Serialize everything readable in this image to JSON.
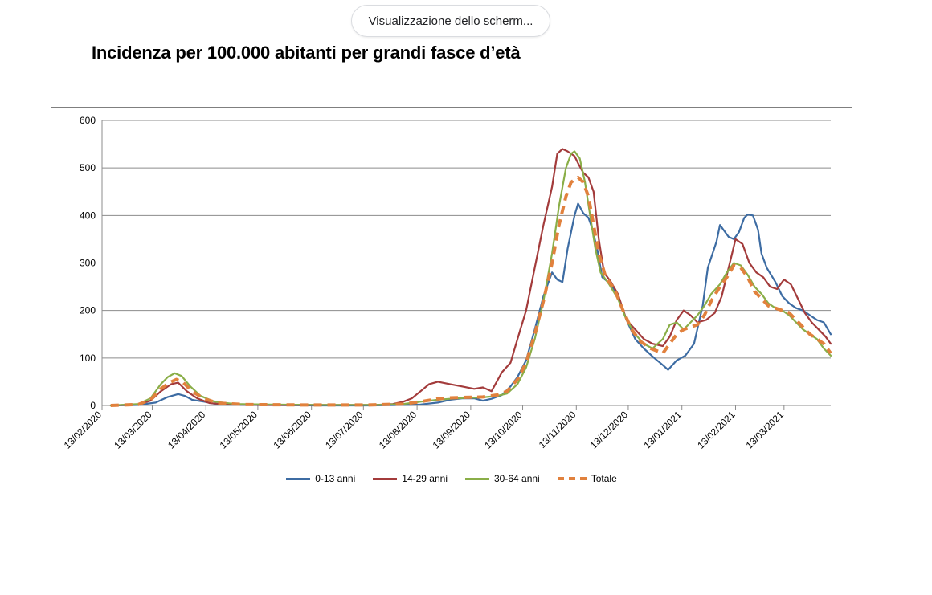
{
  "overlay": {
    "share_label": "Visualizzazione dello scherm..."
  },
  "slide": {
    "title": "Incidenza per 100.000 abitanti per grandi fasce d’età"
  },
  "chart_data": {
    "type": "line",
    "title": "",
    "xlabel": "",
    "ylabel": "",
    "ylim": [
      0,
      600
    ],
    "yticks": [
      0,
      100,
      200,
      300,
      400,
      500,
      600
    ],
    "xlim": [
      "2020-02-13",
      "2021-04-09"
    ],
    "xticks": [
      "2020-02-13",
      "2020-03-13",
      "2020-04-13",
      "2020-05-13",
      "2020-06-13",
      "2020-07-13",
      "2020-08-13",
      "2020-09-13",
      "2020-10-13",
      "2020-11-13",
      "2020-12-13",
      "2021-01-13",
      "2021-02-13",
      "2021-03-13"
    ],
    "xtick_labels": [
      "13/02/2020",
      "13/03/2020",
      "13/04/2020",
      "13/05/2020",
      "13/06/2020",
      "13/07/2020",
      "13/08/2020",
      "13/09/2020",
      "13/10/2020",
      "13/11/2020",
      "13/12/2020",
      "13/01/2021",
      "13/02/2021",
      "13/03/2021"
    ],
    "grid": {
      "horizontal": true,
      "vertical": false
    },
    "legend_position": "bottom",
    "series": [
      {
        "name": "0-13 anni",
        "color": "#3d6ca3",
        "dashed": false,
        "points": [
          [
            "2020-02-18",
            0
          ],
          [
            "2020-03-05",
            1
          ],
          [
            "2020-03-15",
            6
          ],
          [
            "2020-03-22",
            18
          ],
          [
            "2020-03-28",
            24
          ],
          [
            "2020-04-01",
            20
          ],
          [
            "2020-04-05",
            12
          ],
          [
            "2020-04-12",
            8
          ],
          [
            "2020-04-20",
            2
          ],
          [
            "2020-05-10",
            1
          ],
          [
            "2020-06-15",
            0
          ],
          [
            "2020-07-15",
            0
          ],
          [
            "2020-08-05",
            1
          ],
          [
            "2020-08-15",
            2
          ],
          [
            "2020-08-25",
            6
          ],
          [
            "2020-09-01",
            12
          ],
          [
            "2020-09-08",
            15
          ],
          [
            "2020-09-15",
            15
          ],
          [
            "2020-09-20",
            10
          ],
          [
            "2020-09-25",
            14
          ],
          [
            "2020-10-01",
            22
          ],
          [
            "2020-10-06",
            40
          ],
          [
            "2020-10-10",
            60
          ],
          [
            "2020-10-15",
            95
          ],
          [
            "2020-10-20",
            160
          ],
          [
            "2020-10-25",
            230
          ],
          [
            "2020-10-30",
            280
          ],
          [
            "2020-11-02",
            265
          ],
          [
            "2020-11-05",
            260
          ],
          [
            "2020-11-08",
            330
          ],
          [
            "2020-11-12",
            400
          ],
          [
            "2020-11-14",
            425
          ],
          [
            "2020-11-17",
            405
          ],
          [
            "2020-11-20",
            395
          ],
          [
            "2020-11-22",
            375
          ],
          [
            "2020-11-25",
            330
          ],
          [
            "2020-11-28",
            270
          ],
          [
            "2020-12-03",
            255
          ],
          [
            "2020-12-07",
            230
          ],
          [
            "2020-12-12",
            180
          ],
          [
            "2020-12-17",
            140
          ],
          [
            "2020-12-22",
            120
          ],
          [
            "2020-12-28",
            100
          ],
          [
            "2021-01-02",
            85
          ],
          [
            "2021-01-05",
            75
          ],
          [
            "2021-01-10",
            95
          ],
          [
            "2021-01-15",
            105
          ],
          [
            "2021-01-20",
            130
          ],
          [
            "2021-01-25",
            210
          ],
          [
            "2021-01-28",
            290
          ],
          [
            "2021-02-02",
            345
          ],
          [
            "2021-02-04",
            380
          ],
          [
            "2021-02-06",
            370
          ],
          [
            "2021-02-09",
            355
          ],
          [
            "2021-02-12",
            350
          ],
          [
            "2021-02-15",
            365
          ],
          [
            "2021-02-18",
            395
          ],
          [
            "2021-02-20",
            402
          ],
          [
            "2021-02-23",
            400
          ],
          [
            "2021-02-26",
            370
          ],
          [
            "2021-02-28",
            320
          ],
          [
            "2021-03-03",
            290
          ],
          [
            "2021-03-08",
            260
          ],
          [
            "2021-03-12",
            230
          ],
          [
            "2021-03-16",
            215
          ],
          [
            "2021-03-20",
            205
          ],
          [
            "2021-03-24",
            200
          ],
          [
            "2021-03-28",
            190
          ],
          [
            "2021-04-01",
            180
          ],
          [
            "2021-04-05",
            175
          ],
          [
            "2021-04-09",
            150
          ]
        ]
      },
      {
        "name": "14-29 anni",
        "color": "#a33b3b",
        "dashed": false,
        "points": [
          [
            "2020-02-18",
            0
          ],
          [
            "2020-03-05",
            2
          ],
          [
            "2020-03-12",
            10
          ],
          [
            "2020-03-18",
            30
          ],
          [
            "2020-03-24",
            45
          ],
          [
            "2020-03-28",
            48
          ],
          [
            "2020-04-02",
            30
          ],
          [
            "2020-04-08",
            15
          ],
          [
            "2020-04-15",
            5
          ],
          [
            "2020-04-25",
            2
          ],
          [
            "2020-05-20",
            1
          ],
          [
            "2020-06-20",
            1
          ],
          [
            "2020-07-20",
            1
          ],
          [
            "2020-07-30",
            3
          ],
          [
            "2020-08-05",
            8
          ],
          [
            "2020-08-10",
            15
          ],
          [
            "2020-08-15",
            30
          ],
          [
            "2020-08-20",
            45
          ],
          [
            "2020-08-25",
            50
          ],
          [
            "2020-09-01",
            45
          ],
          [
            "2020-09-08",
            40
          ],
          [
            "2020-09-15",
            35
          ],
          [
            "2020-09-20",
            38
          ],
          [
            "2020-09-25",
            30
          ],
          [
            "2020-10-01",
            70
          ],
          [
            "2020-10-06",
            90
          ],
          [
            "2020-10-10",
            140
          ],
          [
            "2020-10-15",
            200
          ],
          [
            "2020-10-20",
            290
          ],
          [
            "2020-10-25",
            380
          ],
          [
            "2020-10-30",
            460
          ],
          [
            "2020-11-02",
            530
          ],
          [
            "2020-11-05",
            540
          ],
          [
            "2020-11-08",
            535
          ],
          [
            "2020-11-12",
            525
          ],
          [
            "2020-11-14",
            510
          ],
          [
            "2020-11-17",
            490
          ],
          [
            "2020-11-20",
            480
          ],
          [
            "2020-11-23",
            450
          ],
          [
            "2020-11-26",
            350
          ],
          [
            "2020-11-29",
            280
          ],
          [
            "2020-12-03",
            260
          ],
          [
            "2020-12-07",
            235
          ],
          [
            "2020-12-12",
            180
          ],
          [
            "2020-12-17",
            160
          ],
          [
            "2020-12-22",
            140
          ],
          [
            "2020-12-27",
            130
          ],
          [
            "2021-01-02",
            125
          ],
          [
            "2021-01-06",
            145
          ],
          [
            "2021-01-10",
            180
          ],
          [
            "2021-01-14",
            200
          ],
          [
            "2021-01-18",
            190
          ],
          [
            "2021-01-22",
            175
          ],
          [
            "2021-01-27",
            180
          ],
          [
            "2021-02-01",
            195
          ],
          [
            "2021-02-05",
            230
          ],
          [
            "2021-02-09",
            290
          ],
          [
            "2021-02-13",
            350
          ],
          [
            "2021-02-17",
            340
          ],
          [
            "2021-02-21",
            300
          ],
          [
            "2021-02-25",
            280
          ],
          [
            "2021-03-01",
            270
          ],
          [
            "2021-03-05",
            250
          ],
          [
            "2021-03-09",
            245
          ],
          [
            "2021-03-13",
            265
          ],
          [
            "2021-03-17",
            255
          ],
          [
            "2021-03-21",
            225
          ],
          [
            "2021-03-25",
            195
          ],
          [
            "2021-03-29",
            175
          ],
          [
            "2021-04-02",
            160
          ],
          [
            "2021-04-06",
            145
          ],
          [
            "2021-04-09",
            130
          ]
        ]
      },
      {
        "name": "30-64 anni",
        "color": "#8aae48",
        "dashed": false,
        "points": [
          [
            "2020-02-18",
            0
          ],
          [
            "2020-03-05",
            3
          ],
          [
            "2020-03-12",
            15
          ],
          [
            "2020-03-18",
            45
          ],
          [
            "2020-03-22",
            60
          ],
          [
            "2020-03-26",
            68
          ],
          [
            "2020-03-30",
            62
          ],
          [
            "2020-04-04",
            40
          ],
          [
            "2020-04-10",
            20
          ],
          [
            "2020-04-18",
            8
          ],
          [
            "2020-04-30",
            3
          ],
          [
            "2020-05-20",
            2
          ],
          [
            "2020-06-20",
            1
          ],
          [
            "2020-07-20",
            1
          ],
          [
            "2020-08-05",
            3
          ],
          [
            "2020-08-15",
            8
          ],
          [
            "2020-08-25",
            12
          ],
          [
            "2020-09-01",
            14
          ],
          [
            "2020-09-10",
            16
          ],
          [
            "2020-09-20",
            17
          ],
          [
            "2020-09-28",
            20
          ],
          [
            "2020-10-04",
            25
          ],
          [
            "2020-10-10",
            45
          ],
          [
            "2020-10-15",
            80
          ],
          [
            "2020-10-20",
            140
          ],
          [
            "2020-10-25",
            220
          ],
          [
            "2020-10-30",
            320
          ],
          [
            "2020-11-03",
            420
          ],
          [
            "2020-11-07",
            500
          ],
          [
            "2020-11-10",
            530
          ],
          [
            "2020-11-12",
            535
          ],
          [
            "2020-11-15",
            520
          ],
          [
            "2020-11-18",
            470
          ],
          [
            "2020-11-21",
            400
          ],
          [
            "2020-11-24",
            330
          ],
          [
            "2020-11-27",
            280
          ],
          [
            "2020-12-02",
            255
          ],
          [
            "2020-12-07",
            225
          ],
          [
            "2020-12-12",
            180
          ],
          [
            "2020-12-17",
            150
          ],
          [
            "2020-12-22",
            130
          ],
          [
            "2020-12-27",
            120
          ],
          [
            "2021-01-02",
            140
          ],
          [
            "2021-01-06",
            170
          ],
          [
            "2021-01-10",
            175
          ],
          [
            "2021-01-14",
            160
          ],
          [
            "2021-01-18",
            175
          ],
          [
            "2021-01-22",
            190
          ],
          [
            "2021-01-26",
            210
          ],
          [
            "2021-01-30",
            235
          ],
          [
            "2021-02-04",
            255
          ],
          [
            "2021-02-08",
            280
          ],
          [
            "2021-02-12",
            300
          ],
          [
            "2021-02-16",
            295
          ],
          [
            "2021-02-20",
            275
          ],
          [
            "2021-02-24",
            250
          ],
          [
            "2021-02-28",
            235
          ],
          [
            "2021-03-04",
            215
          ],
          [
            "2021-03-08",
            205
          ],
          [
            "2021-03-12",
            200
          ],
          [
            "2021-03-16",
            190
          ],
          [
            "2021-03-20",
            175
          ],
          [
            "2021-03-24",
            160
          ],
          [
            "2021-03-28",
            150
          ],
          [
            "2021-04-01",
            140
          ],
          [
            "2021-04-05",
            120
          ],
          [
            "2021-04-09",
            105
          ]
        ]
      },
      {
        "name": "Totale",
        "color": "#e1813d",
        "dashed": true,
        "points": [
          [
            "2020-02-18",
            0
          ],
          [
            "2020-03-05",
            2
          ],
          [
            "2020-03-12",
            12
          ],
          [
            "2020-03-18",
            35
          ],
          [
            "2020-03-23",
            48
          ],
          [
            "2020-03-27",
            55
          ],
          [
            "2020-03-31",
            48
          ],
          [
            "2020-04-05",
            30
          ],
          [
            "2020-04-12",
            14
          ],
          [
            "2020-04-20",
            5
          ],
          [
            "2020-05-05",
            2
          ],
          [
            "2020-06-10",
            1
          ],
          [
            "2020-07-15",
            1
          ],
          [
            "2020-08-05",
            3
          ],
          [
            "2020-08-15",
            8
          ],
          [
            "2020-08-25",
            14
          ],
          [
            "2020-09-01",
            16
          ],
          [
            "2020-09-10",
            17
          ],
          [
            "2020-09-20",
            18
          ],
          [
            "2020-09-28",
            22
          ],
          [
            "2020-10-04",
            30
          ],
          [
            "2020-10-10",
            55
          ],
          [
            "2020-10-15",
            90
          ],
          [
            "2020-10-20",
            150
          ],
          [
            "2020-10-25",
            220
          ],
          [
            "2020-10-30",
            300
          ],
          [
            "2020-11-03",
            380
          ],
          [
            "2020-11-07",
            440
          ],
          [
            "2020-11-10",
            470
          ],
          [
            "2020-11-14",
            480
          ],
          [
            "2020-11-17",
            470
          ],
          [
            "2020-11-20",
            440
          ],
          [
            "2020-11-23",
            380
          ],
          [
            "2020-11-26",
            320
          ],
          [
            "2020-11-30",
            270
          ],
          [
            "2020-12-05",
            245
          ],
          [
            "2020-12-10",
            200
          ],
          [
            "2020-12-15",
            160
          ],
          [
            "2020-12-20",
            135
          ],
          [
            "2020-12-26",
            120
          ],
          [
            "2021-01-02",
            110
          ],
          [
            "2021-01-06",
            130
          ],
          [
            "2021-01-10",
            150
          ],
          [
            "2021-01-14",
            160
          ],
          [
            "2021-01-18",
            165
          ],
          [
            "2021-01-22",
            170
          ],
          [
            "2021-01-26",
            190
          ],
          [
            "2021-01-30",
            220
          ],
          [
            "2021-02-04",
            250
          ],
          [
            "2021-02-08",
            270
          ],
          [
            "2021-02-12",
            295
          ],
          [
            "2021-02-16",
            290
          ],
          [
            "2021-02-20",
            270
          ],
          [
            "2021-02-24",
            240
          ],
          [
            "2021-02-28",
            225
          ],
          [
            "2021-03-04",
            210
          ],
          [
            "2021-03-08",
            205
          ],
          [
            "2021-03-12",
            200
          ],
          [
            "2021-03-16",
            195
          ],
          [
            "2021-03-20",
            180
          ],
          [
            "2021-03-24",
            165
          ],
          [
            "2021-03-28",
            150
          ],
          [
            "2021-04-01",
            140
          ],
          [
            "2021-04-05",
            130
          ],
          [
            "2021-04-09",
            110
          ]
        ]
      }
    ]
  }
}
